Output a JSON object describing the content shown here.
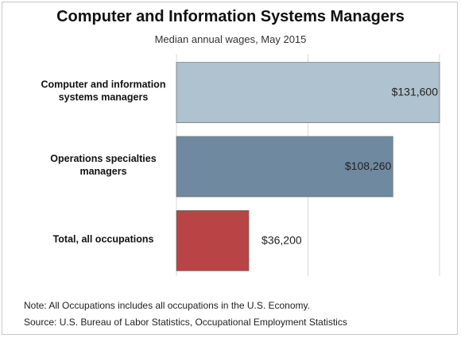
{
  "chart_data": {
    "type": "bar",
    "orientation": "horizontal",
    "title": "Computer and Information Systems Managers",
    "subtitle": "Median annual wages, May 2015",
    "categories": [
      [
        "Computer and information",
        "systems managers"
      ],
      [
        "Operations specialties",
        "managers"
      ],
      [
        "Total, all occupations"
      ]
    ],
    "values": [
      131600,
      108260,
      36200
    ],
    "value_labels": [
      "$131,600",
      "$108,260",
      "$36,200"
    ],
    "colors": [
      "#afc2cf",
      "#6f8aa0",
      "#b84445"
    ],
    "xlim": [
      0,
      131600
    ],
    "grid": true
  },
  "notes": {
    "note": "Note: All Occupations includes all occupations in the U.S. Economy.",
    "source": "Source: U.S. Bureau of Labor Statistics, Occupational Employment Statistics"
  }
}
